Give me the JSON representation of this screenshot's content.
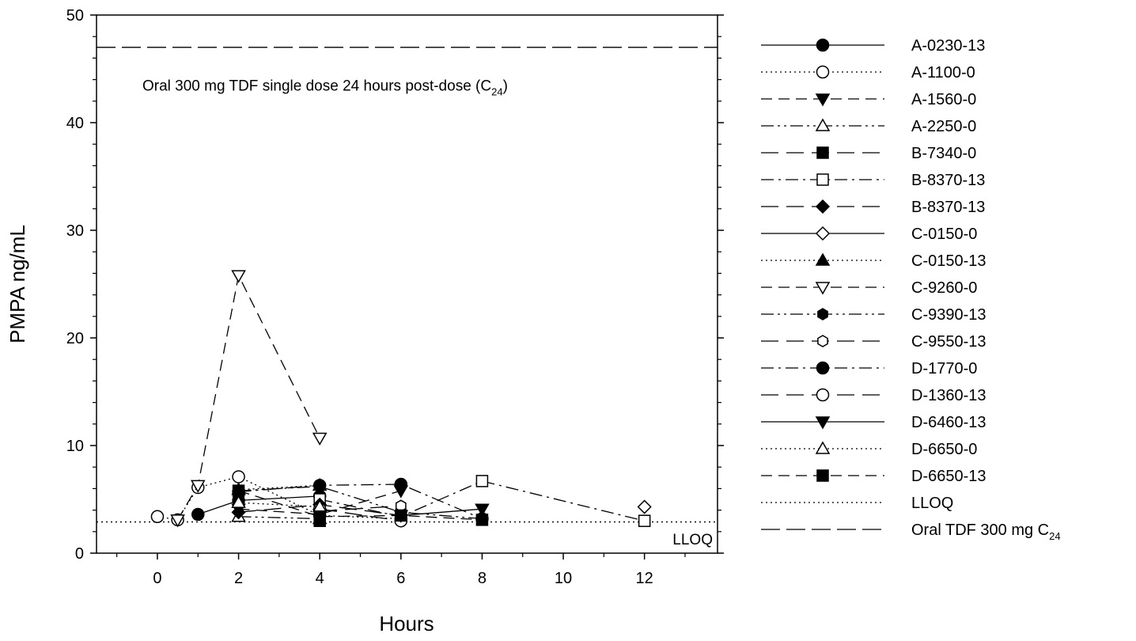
{
  "chart_data": {
    "type": "line",
    "xlabel": "Hours",
    "ylabel": "PMPA ng/mL",
    "xlim": [
      -1.5,
      13.8
    ],
    "ylim": [
      0,
      50
    ],
    "x_ticks": [
      0,
      2,
      4,
      6,
      8,
      10,
      12
    ],
    "y_ticks": [
      0,
      10,
      20,
      30,
      40,
      50
    ],
    "grid": false,
    "legend_position": "right",
    "reference_lines": [
      {
        "name": "LLOQ",
        "y": 2.9,
        "style": "dotted",
        "label": "LLOQ"
      },
      {
        "name": "Oral TDF 300 mg C",
        "sub": "24",
        "y": 47,
        "style": "long-dash",
        "label": "Oral 300 mg TDF single dose 24 hours post-dose (C",
        "label_sub": "24",
        "label_close": ")"
      }
    ],
    "series": [
      {
        "name": "A-0230-13",
        "marker": "circle",
        "fill": "filled",
        "dash": "solid",
        "x": [
          1,
          2,
          4
        ],
        "y": [
          3.6,
          4.9,
          5.3
        ]
      },
      {
        "name": "A-1100-0",
        "marker": "circle",
        "fill": "open",
        "dash": "dotted",
        "x": [
          0,
          0.5,
          1,
          2,
          4,
          6
        ],
        "y": [
          3.4,
          3.1,
          6.1,
          7.1,
          3.5,
          3.2
        ]
      },
      {
        "name": "A-1560-0",
        "marker": "triangle-down",
        "fill": "filled",
        "dash": "dash",
        "x": [
          2,
          4,
          6
        ],
        "y": [
          4.1,
          3.6,
          5.8
        ]
      },
      {
        "name": "A-2250-0",
        "marker": "triangle-up",
        "fill": "open",
        "dash": "dashdotdot",
        "x": [
          2,
          4
        ],
        "y": [
          3.4,
          3.2
        ]
      },
      {
        "name": "B-7340-0",
        "marker": "square",
        "fill": "filled",
        "dash": "longdash",
        "x": [
          4
        ],
        "y": [
          3.0
        ]
      },
      {
        "name": "B-8370-13",
        "marker": "square",
        "fill": "open",
        "dash": "dashdot",
        "x": [
          4,
          6,
          8,
          12
        ],
        "y": [
          5.0,
          3.4,
          6.7,
          3.0
        ]
      },
      {
        "name": "B-8370-13",
        "marker": "diamond",
        "fill": "filled",
        "dash": "longdash",
        "x": [
          2,
          4,
          6
        ],
        "y": [
          3.8,
          4.5,
          3.5
        ]
      },
      {
        "name": "C-0150-0",
        "marker": "diamond",
        "fill": "open",
        "dash": "solid",
        "x": [
          12
        ],
        "y": [
          4.3
        ]
      },
      {
        "name": "C-0150-13",
        "marker": "triangle-up",
        "fill": "filled",
        "dash": "dotted",
        "x": [
          2,
          4
        ],
        "y": [
          5.9,
          6.3
        ]
      },
      {
        "name": "C-9260-0",
        "marker": "triangle-down",
        "fill": "open",
        "dash": "dash",
        "x": [
          0.5,
          1,
          2,
          4
        ],
        "y": [
          3.1,
          6.3,
          25.8,
          10.7
        ]
      },
      {
        "name": "C-9390-13",
        "marker": "hexagon",
        "fill": "filled",
        "dash": "dashdotdot",
        "x": [
          2,
          4,
          6,
          8
        ],
        "y": [
          5.8,
          6.2,
          3.8,
          3.2
        ]
      },
      {
        "name": "C-9550-13",
        "marker": "hexagon",
        "fill": "open",
        "dash": "longdash",
        "x": [
          4,
          6
        ],
        "y": [
          3.9,
          4.4
        ]
      },
      {
        "name": "D-1770-0",
        "marker": "circle",
        "fill": "filled",
        "dash": "dashdot",
        "x": [
          2,
          4,
          6,
          8
        ],
        "y": [
          5.7,
          6.3,
          6.4,
          3.2
        ]
      },
      {
        "name": "D-1360-13",
        "marker": "circle",
        "fill": "open",
        "dash": "longdash",
        "x": [
          4,
          6
        ],
        "y": [
          4.1,
          3.0
        ]
      },
      {
        "name": "D-6460-13",
        "marker": "triangle-down",
        "fill": "filled",
        "dash": "solid",
        "x": [
          6,
          8
        ],
        "y": [
          3.5,
          4.1
        ]
      },
      {
        "name": "D-6650-0",
        "marker": "triangle-up",
        "fill": "open",
        "dash": "dotted",
        "x": [
          2,
          4
        ],
        "y": [
          4.7,
          4.3
        ]
      },
      {
        "name": "D-6650-13",
        "marker": "square",
        "fill": "filled",
        "dash": "dash",
        "x": [
          2,
          4,
          6,
          8
        ],
        "y": [
          5.8,
          3.4,
          3.5,
          3.1
        ]
      }
    ],
    "legend": [
      {
        "label": "A-0230-13",
        "marker": "circle",
        "fill": "filled",
        "dash": "solid"
      },
      {
        "label": "A-1100-0",
        "marker": "circle",
        "fill": "open",
        "dash": "dotted"
      },
      {
        "label": "A-1560-0",
        "marker": "triangle-down",
        "fill": "filled",
        "dash": "dash"
      },
      {
        "label": "A-2250-0",
        "marker": "triangle-up",
        "fill": "open",
        "dash": "dashdotdot"
      },
      {
        "label": "B-7340-0",
        "marker": "square",
        "fill": "filled",
        "dash": "longdash"
      },
      {
        "label": "B-8370-13",
        "marker": "square",
        "fill": "open",
        "dash": "dashdot"
      },
      {
        "label": "B-8370-13",
        "marker": "diamond",
        "fill": "filled",
        "dash": "longdash"
      },
      {
        "label": "C-0150-0",
        "marker": "diamond",
        "fill": "open",
        "dash": "solid"
      },
      {
        "label": "C-0150-13",
        "marker": "triangle-up",
        "fill": "filled",
        "dash": "dotted"
      },
      {
        "label": "C-9260-0",
        "marker": "triangle-down",
        "fill": "open",
        "dash": "dash"
      },
      {
        "label": "C-9390-13",
        "marker": "hexagon",
        "fill": "filled",
        "dash": "dashdotdot"
      },
      {
        "label": "C-9550-13",
        "marker": "hexagon",
        "fill": "open",
        "dash": "longdash"
      },
      {
        "label": "D-1770-0",
        "marker": "circle",
        "fill": "filled",
        "dash": "dashdot"
      },
      {
        "label": "D-1360-13",
        "marker": "circle",
        "fill": "open",
        "dash": "longdash"
      },
      {
        "label": "D-6460-13",
        "marker": "triangle-down",
        "fill": "filled",
        "dash": "solid"
      },
      {
        "label": "D-6650-0",
        "marker": "triangle-up",
        "fill": "open",
        "dash": "dotted"
      },
      {
        "label": "D-6650-13",
        "marker": "square",
        "fill": "filled",
        "dash": "dash"
      },
      {
        "label": "LLOQ",
        "marker": "none",
        "fill": "none",
        "dash": "dotted"
      },
      {
        "label": "Oral TDF 300 mg C",
        "sub": "24",
        "marker": "none",
        "fill": "none",
        "dash": "longdash"
      }
    ]
  }
}
